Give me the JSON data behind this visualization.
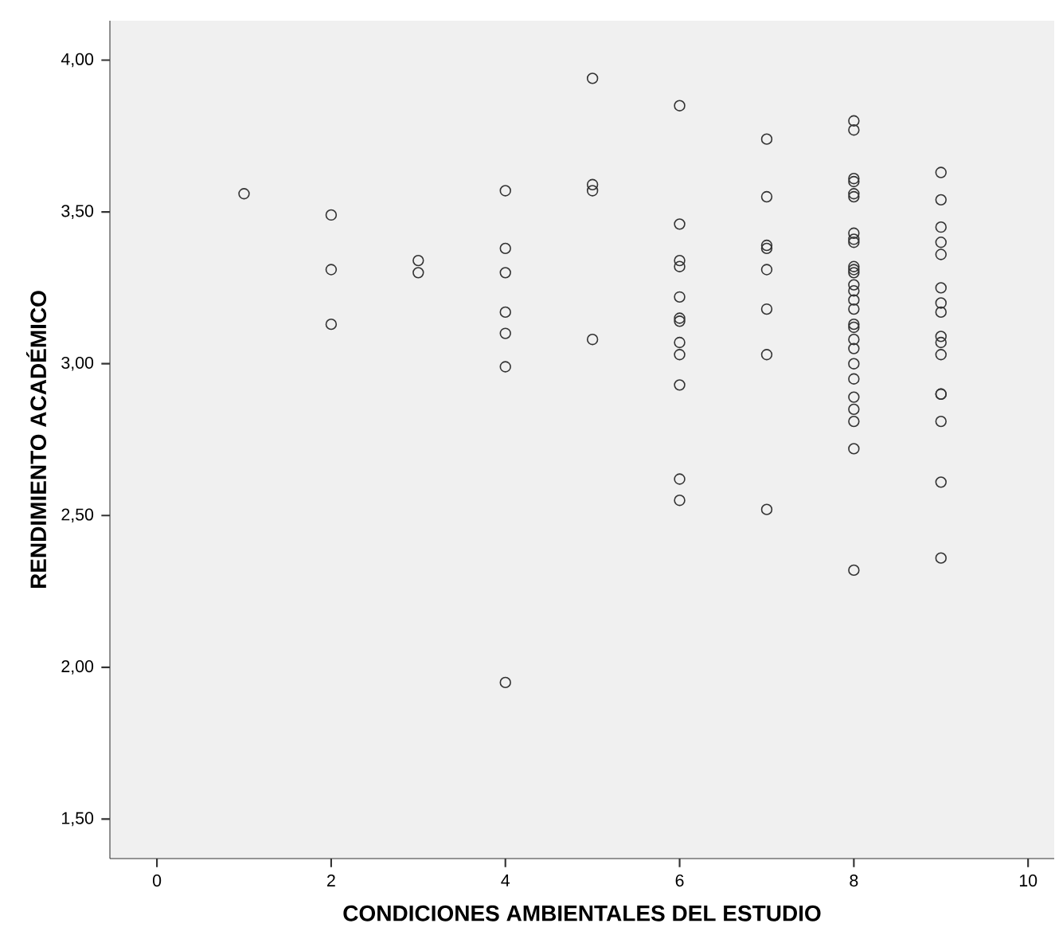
{
  "chart_data": {
    "type": "scatter",
    "xlabel": "CONDICIONES AMBIENTALES DEL ESTUDIO",
    "ylabel": "RENDIMIENTO ACADÉMICO",
    "xlim": [
      -0.54,
      10.3
    ],
    "ylim": [
      1.37,
      4.13
    ],
    "xticks": [
      0,
      2,
      4,
      6,
      8,
      10
    ],
    "yticks": [
      {
        "value": 1.5,
        "label": "1,50"
      },
      {
        "value": 2,
        "label": "2,00"
      },
      {
        "value": 2.5,
        "label": "2,50"
      },
      {
        "value": 3,
        "label": "3,00"
      },
      {
        "value": 3.5,
        "label": "3,50"
      },
      {
        "value": 4,
        "label": "4,00"
      }
    ],
    "grid": false,
    "marker": "circle",
    "series": [
      {
        "color": "#333333",
        "x": [
          1,
          2,
          2,
          2,
          3,
          3,
          4,
          4,
          4,
          4,
          4,
          4,
          4,
          5,
          5,
          5,
          5,
          6,
          6,
          6,
          6,
          6,
          6,
          6,
          6,
          6,
          6,
          6,
          6,
          7,
          7,
          7,
          7,
          7,
          7,
          7,
          7,
          8,
          8,
          8,
          8,
          8,
          8,
          8,
          8,
          8,
          8,
          8,
          8,
          8,
          8,
          8,
          8,
          8,
          8,
          8,
          8,
          8,
          8,
          8,
          8,
          8,
          8,
          8,
          9,
          9,
          9,
          9,
          9,
          9,
          9,
          9,
          9,
          9,
          9,
          9,
          9,
          9,
          9,
          9
        ],
        "values": [
          3.56,
          3.49,
          3.31,
          3.13,
          3.34,
          3.3,
          3.57,
          3.38,
          3.3,
          3.17,
          3.1,
          2.99,
          1.95,
          3.94,
          3.59,
          3.57,
          3.08,
          3.85,
          3.46,
          3.34,
          3.32,
          3.22,
          3.15,
          3.14,
          3.07,
          3.03,
          2.93,
          2.62,
          2.55,
          3.74,
          3.55,
          3.39,
          3.38,
          3.31,
          3.18,
          3.03,
          2.52,
          3.8,
          3.77,
          3.61,
          3.6,
          3.56,
          3.55,
          3.43,
          3.41,
          3.4,
          3.32,
          3.31,
          3.3,
          3.26,
          3.24,
          3.21,
          3.18,
          3.13,
          3.12,
          3.08,
          3.05,
          3.0,
          2.95,
          2.89,
          2.85,
          2.81,
          2.72,
          2.32,
          3.63,
          3.54,
          3.45,
          3.4,
          3.36,
          3.25,
          3.2,
          3.17,
          3.09,
          3.07,
          3.03,
          2.9,
          2.9,
          2.81,
          2.61,
          2.36
        ]
      }
    ]
  }
}
